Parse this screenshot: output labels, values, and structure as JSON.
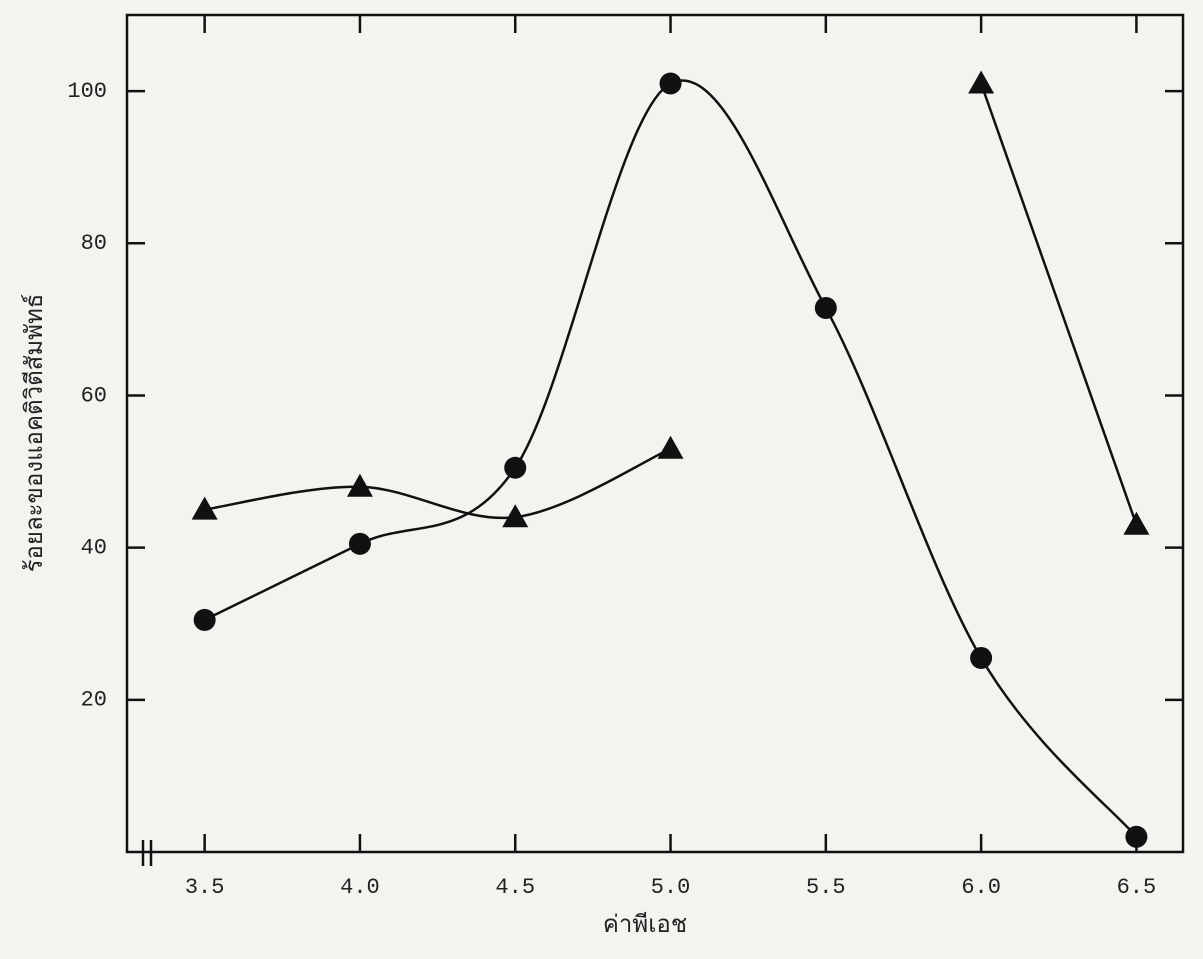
{
  "chart_data": {
    "type": "line",
    "x_label": "ค่าพีเอช",
    "y_label": "ร้อยละของแอคติวิตีสัมพัทธ์",
    "x": [
      3.5,
      4.0,
      4.5,
      5.0,
      5.5,
      6.0,
      6.5
    ],
    "series": [
      {
        "marker": "circle",
        "color": "#111111",
        "values": [
          30.5,
          40.5,
          50.5,
          101,
          71.5,
          25.5,
          2
        ]
      },
      {
        "marker": "triangle",
        "color": "#111111",
        "values": [
          45,
          48,
          44,
          53,
          null,
          101,
          43
        ]
      }
    ],
    "xlim": [
      3.25,
      6.65
    ],
    "ylim": [
      0,
      110
    ],
    "xticks": [
      {
        "value": 3.5,
        "label": "3.5"
      },
      {
        "value": 4.0,
        "label": "4.0"
      },
      {
        "value": 4.5,
        "label": "4.5"
      },
      {
        "value": 5.0,
        "label": "5.0"
      },
      {
        "value": 5.5,
        "label": "5.5"
      },
      {
        "value": 6.0,
        "label": "6.0"
      },
      {
        "value": 6.5,
        "label": "6.5"
      }
    ],
    "yticks": [
      20,
      40,
      60,
      80,
      100
    ],
    "smooth": true
  }
}
